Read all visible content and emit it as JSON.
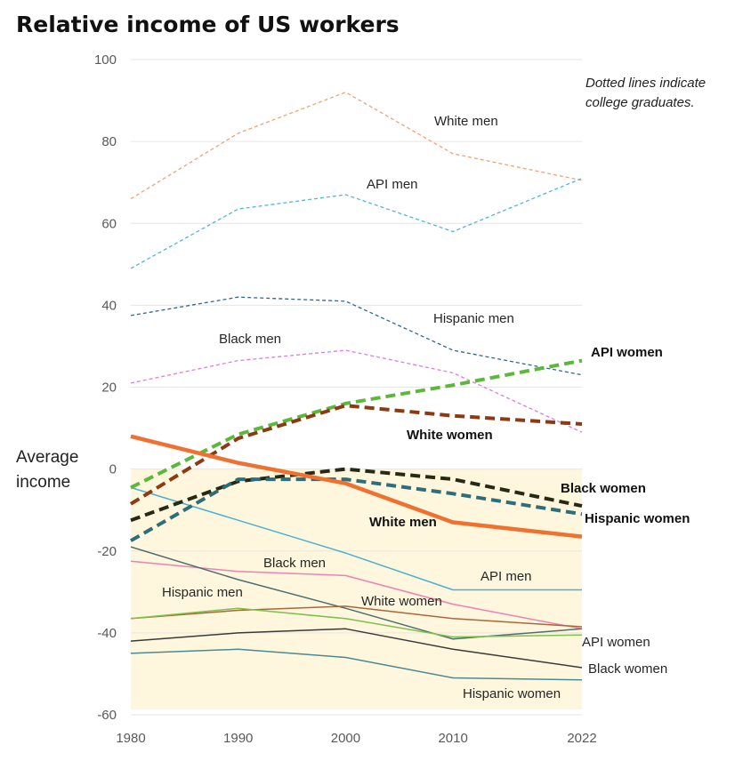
{
  "chart_data": {
    "type": "line",
    "title": "Relative income of US workers",
    "ylabel": [
      "Average",
      "income"
    ],
    "annotation": [
      "Dotted lines indicate",
      "college graduates."
    ],
    "x": [
      1980,
      1990,
      2000,
      2010,
      2022
    ],
    "x_tick_labels": [
      "1980",
      "1990",
      "2000",
      "2010",
      "2022"
    ],
    "y_ticks": [
      100,
      80,
      60,
      40,
      20,
      0,
      -20,
      -40,
      -60
    ],
    "y_tick_labels": [
      "100",
      "80",
      "60",
      "40",
      "20",
      "0",
      "-20",
      "-40",
      "-60"
    ],
    "ylim": [
      -60,
      100
    ],
    "shaded_region": [
      0,
      -60
    ],
    "shaded_color": "#fff6de",
    "series": [
      {
        "name": "White men",
        "group": "college",
        "style": "dotted-thin",
        "color": "#f4a074",
        "values": [
          66,
          82,
          92,
          77,
          70.5
        ]
      },
      {
        "name": "API men",
        "group": "college",
        "style": "dotted-thin",
        "color": "#4db6e0",
        "values": [
          49,
          63.5,
          67,
          58,
          71
        ]
      },
      {
        "name": "Hispanic men",
        "group": "college",
        "style": "dotted-thin",
        "color": "#2f6596",
        "values": [
          37.5,
          42,
          41,
          29,
          23
        ]
      },
      {
        "name": "Black men",
        "group": "college",
        "style": "dotted-thin",
        "color": "#e07ae0",
        "values": [
          21,
          26.5,
          29,
          23.5,
          9
        ]
      },
      {
        "name": "API women",
        "group": "college",
        "style": "dotted-bold",
        "color": "#5cb83a",
        "values": [
          -4.5,
          8.5,
          16,
          20.5,
          26.5
        ]
      },
      {
        "name": "White women",
        "group": "college",
        "style": "dotted-bold",
        "color": "#8c3a12",
        "values": [
          -8.5,
          7.5,
          15.5,
          13,
          11
        ]
      },
      {
        "name": "Black women",
        "group": "college",
        "style": "dotted-bold",
        "color": "#262a14",
        "values": [
          -12.5,
          -3,
          0,
          -2.5,
          -9
        ]
      },
      {
        "name": "Hispanic women",
        "group": "college",
        "style": "dotted-bold",
        "color": "#2e6d7a",
        "values": [
          -17.5,
          -2.5,
          -2.5,
          -6,
          -11
        ]
      },
      {
        "name": "White men",
        "group": "non-college",
        "style": "solid-bold",
        "color": "#f07030",
        "values": [
          8,
          1.5,
          -3.5,
          -13,
          -16.5
        ]
      },
      {
        "name": "API men",
        "group": "non-college",
        "style": "solid-thin",
        "color": "#4ab0d4",
        "values": [
          -4.5,
          -12.5,
          -20.5,
          -29.5,
          -29.5
        ]
      },
      {
        "name": "Black men",
        "group": "non-college",
        "style": "solid-thin",
        "color": "#ee82b4",
        "values": [
          -22.5,
          -25,
          -26,
          -33,
          -39
        ]
      },
      {
        "name": "Hispanic men",
        "group": "non-college",
        "style": "solid-thin",
        "color": "#4f6e70",
        "values": [
          -19,
          -27,
          -34,
          -41.5,
          -39
        ]
      },
      {
        "name": "White women",
        "group": "non-college",
        "style": "solid-thin",
        "color": "#a8683a",
        "values": [
          -36.5,
          -34.5,
          -33.5,
          -36.5,
          -38.5
        ]
      },
      {
        "name": "API women",
        "group": "non-college",
        "style": "solid-thin",
        "color": "#7cc24a",
        "values": [
          -36.5,
          -34,
          -36.5,
          -41,
          -40.5
        ]
      },
      {
        "name": "Black women",
        "group": "non-college",
        "style": "solid-thin",
        "color": "#3a3a3a",
        "values": [
          -42,
          -40,
          -39,
          -44,
          -48.5
        ]
      },
      {
        "name": "Hispanic women",
        "group": "non-college",
        "style": "solid-thin",
        "color": "#4a8a94",
        "values": [
          -45,
          -44,
          -46,
          -51,
          -51.5
        ]
      }
    ],
    "line_labels": [
      {
        "text": "White men",
        "bold": false
      },
      {
        "text": "API men",
        "bold": false
      },
      {
        "text": "Hispanic men",
        "bold": false
      },
      {
        "text": "Black men",
        "bold": false
      },
      {
        "text": "API women",
        "bold": true
      },
      {
        "text": "White women",
        "bold": true
      },
      {
        "text": "Black women",
        "bold": true
      },
      {
        "text": "Hispanic women",
        "bold": true
      },
      {
        "text": "White men",
        "bold": true
      },
      {
        "text": "Black men",
        "bold": false
      },
      {
        "text": "API men",
        "bold": false
      },
      {
        "text": "Hispanic men",
        "bold": false
      },
      {
        "text": "White women",
        "bold": false
      },
      {
        "text": "API women",
        "bold": false
      },
      {
        "text": "Black women",
        "bold": false
      },
      {
        "text": "Hispanic women",
        "bold": false
      }
    ]
  }
}
